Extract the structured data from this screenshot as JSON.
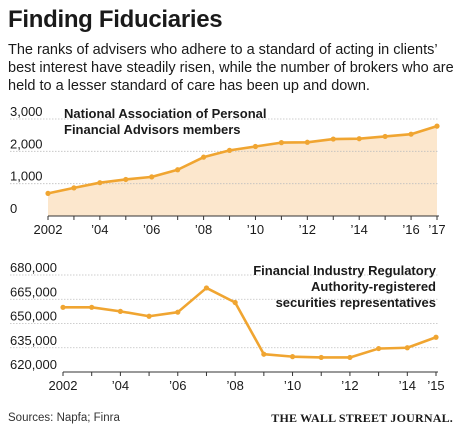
{
  "header": {
    "title": "Finding Fiduciaries",
    "subtitle": "The ranks of advisers who adhere to a standard of acting in clients’ best interest have steadily risen, while the number of brokers who are held to a lesser standard of care has been up and down."
  },
  "footer": {
    "source": "Sources: Napfa; Finra",
    "publisher": "THE WALL STREET JOURNAL."
  },
  "colors": {
    "line": "#f0a531",
    "fill": "#fce7cd",
    "grid": "#bfbfbf",
    "axis": "#333333"
  },
  "chart_data": [
    {
      "type": "area",
      "x": [
        2002,
        2003,
        2004,
        2005,
        2006,
        2007,
        2008,
        2009,
        2010,
        2011,
        2012,
        2013,
        2014,
        2015,
        2016,
        2017
      ],
      "values": [
        700,
        870,
        1030,
        1130,
        1210,
        1430,
        1820,
        2030,
        2150,
        2270,
        2280,
        2380,
        2390,
        2460,
        2530,
        2780
      ],
      "xticks": [
        2002,
        2004,
        2006,
        2008,
        2010,
        2012,
        2014,
        2016,
        2017
      ],
      "xtick_labels": [
        "2002",
        "’04",
        "’06",
        "’08",
        "’10",
        "’12",
        "’14",
        "’16",
        "’17"
      ],
      "yticks": [
        0,
        1000,
        2000,
        3000
      ],
      "ytick_labels": [
        "0",
        "1,000",
        "2,000",
        "3,000"
      ],
      "ylim": [
        0,
        3000
      ],
      "xlim": [
        2002,
        2017
      ],
      "annotation": [
        "National Association of Personal",
        "Financial Advisors members"
      ],
      "grid": true
    },
    {
      "type": "line",
      "x": [
        2002,
        2003,
        2004,
        2005,
        2006,
        2007,
        2008,
        2009,
        2010,
        2011,
        2012,
        2013,
        2014,
        2015
      ],
      "values": [
        660000,
        660000,
        657500,
        654500,
        657000,
        672000,
        663000,
        631000,
        629500,
        629000,
        629000,
        634500,
        635000,
        641500
      ],
      "xticks": [
        2002,
        2004,
        2006,
        2008,
        2010,
        2012,
        2014,
        2015
      ],
      "xtick_labels": [
        "2002",
        "’04",
        "’06",
        "’08",
        "’10",
        "’12",
        "’14",
        "’15"
      ],
      "yticks": [
        620000,
        635000,
        650000,
        665000,
        680000
      ],
      "ytick_labels": [
        "620,000",
        "635,000",
        "650,000",
        "665,000",
        "680,000"
      ],
      "ylim": [
        620000,
        680000
      ],
      "xlim": [
        2002,
        2015
      ],
      "annotation": [
        "Financial Industry Regulatory",
        "Authority-registered",
        "securities representatives"
      ],
      "grid": true
    }
  ]
}
